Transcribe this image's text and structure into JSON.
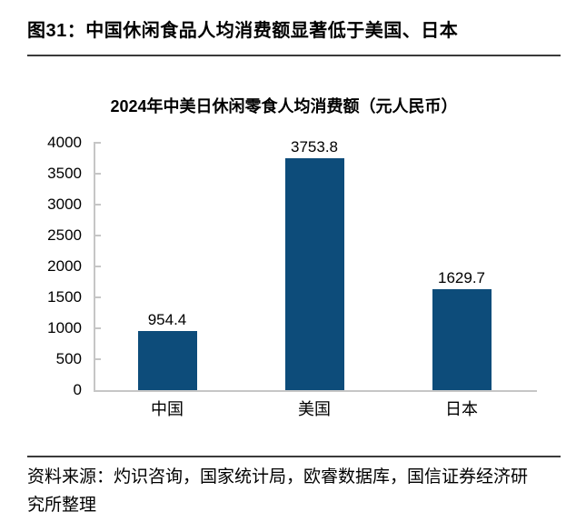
{
  "figure": {
    "caption": "图31：中国休闲食品人均消费额显著低于美国、日本"
  },
  "chart_data": {
    "type": "bar",
    "title": "2024年中美日休闲零食人均消费额（元人民币）",
    "categories": [
      "中国",
      "美国",
      "日本"
    ],
    "values": [
      954.4,
      3753.8,
      1629.7
    ],
    "value_labels": [
      "954.4",
      "3753.8",
      "1629.7"
    ],
    "ylim": [
      0,
      4000
    ],
    "yticks": [
      0,
      500,
      1000,
      1500,
      2000,
      2500,
      3000,
      3500,
      4000
    ],
    "xlabel": "",
    "ylabel": "",
    "grid": false,
    "legend": "none",
    "bar_color": "#0d4c7a",
    "axis_color": "#c6c6c6",
    "label_color": "#000000"
  },
  "source": {
    "full_text": "资料来源：灼识咨询，国家统计局，欧睿数据库，国信证券经济研究所整理",
    "lines": [
      "资料来源：灼识咨询，国家统计局，欧睿数据库，国信证券经济研",
      "究所整理"
    ]
  }
}
